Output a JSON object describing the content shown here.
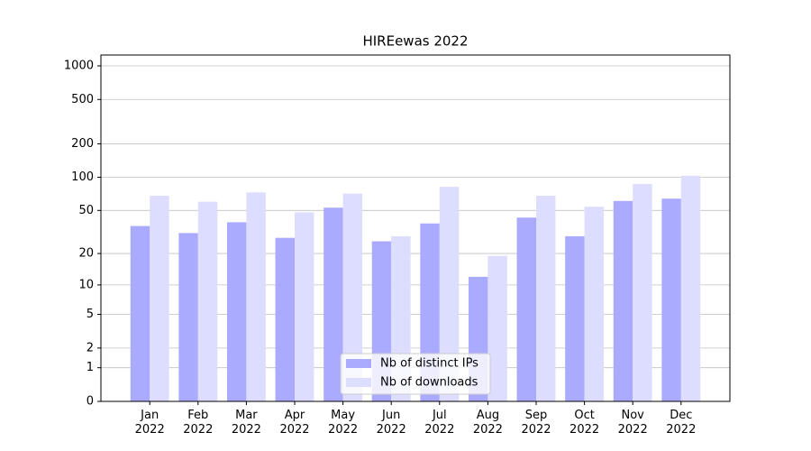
{
  "chart_data": {
    "type": "bar",
    "title": "HIREewas 2022",
    "categories": [
      "Jan\n2022",
      "Feb\n2022",
      "Mar\n2022",
      "Apr\n2022",
      "May\n2022",
      "Jun\n2022",
      "Jul\n2022",
      "Aug\n2022",
      "Sep\n2022",
      "Oct\n2022",
      "Nov\n2022",
      "Dec\n2022"
    ],
    "series": [
      {
        "name": "Nb of distinct IPs",
        "color": "#aaaaff",
        "values": [
          36,
          31,
          39,
          28,
          53,
          26,
          38,
          12,
          43,
          29,
          61,
          64
        ]
      },
      {
        "name": "Nb of downloads",
        "color": "#ddddff",
        "values": [
          68,
          60,
          73,
          48,
          71,
          29,
          82,
          19,
          68,
          54,
          87,
          103
        ]
      }
    ],
    "scale": "log1p",
    "ylim": [
      0,
      1250
    ],
    "yticks": [
      0,
      1,
      2,
      5,
      10,
      20,
      50,
      100,
      200,
      500,
      1000
    ],
    "grid": true,
    "legend": "lower center"
  }
}
